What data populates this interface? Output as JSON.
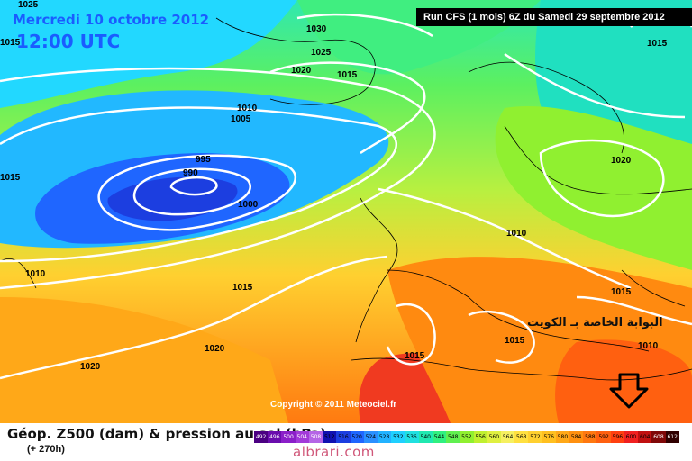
{
  "header": {
    "date": "Mercredi 10 octobre 2012",
    "time": "12:00 UTC",
    "run": "Run CFS (1 mois) 6Z du Samedi 29 septembre 2012"
  },
  "footer": {
    "title": "Géop. Z500 (dam) & pression au sol (hPa)",
    "forecast_range": "(+ 270h)",
    "copyright": "Copyright © 2011 Meteociel.fr",
    "watermark": "albrari.com"
  },
  "annotation": {
    "arabic_text": "البوابة الخاصة بـ الكويت"
  },
  "isobar_labels": [
    "1025",
    "1030",
    "1025",
    "1020",
    "1015",
    "1015",
    "1010",
    "1005",
    "995",
    "990",
    "1000",
    "1015",
    "1010",
    "1020",
    "1015",
    "1015",
    "1010",
    "1015",
    "1020",
    "1020",
    "1015",
    "1010",
    "1015"
  ],
  "legend": {
    "values": [
      "492",
      "496",
      "500",
      "504",
      "508",
      "512",
      "516",
      "520",
      "524",
      "528",
      "532",
      "536",
      "540",
      "544",
      "548",
      "552",
      "556",
      "560",
      "564",
      "568",
      "572",
      "576",
      "580",
      "584",
      "588",
      "592",
      "596",
      "600",
      "604",
      "608",
      "612"
    ],
    "colors": [
      "#4b0082",
      "#6a0dad",
      "#8b1fc9",
      "#a23ad9",
      "#b565e6",
      "#1010b0",
      "#1c3ee0",
      "#1f66ff",
      "#2a90ff",
      "#22b2ff",
      "#1fd0ff",
      "#20e0e0",
      "#20e8b0",
      "#30f080",
      "#60f050",
      "#90f030",
      "#c0f030",
      "#e0f040",
      "#f6f060",
      "#ffe040",
      "#ffd030",
      "#ffc020",
      "#ffa818",
      "#ff9010",
      "#ff7810",
      "#ff6010",
      "#ff4010",
      "#f02020",
      "#c01010",
      "#800808",
      "#300000"
    ]
  },
  "map_colors": {
    "sea_level_isobar": "#ffffff",
    "coast": "#000000",
    "arrow": "#000000"
  }
}
